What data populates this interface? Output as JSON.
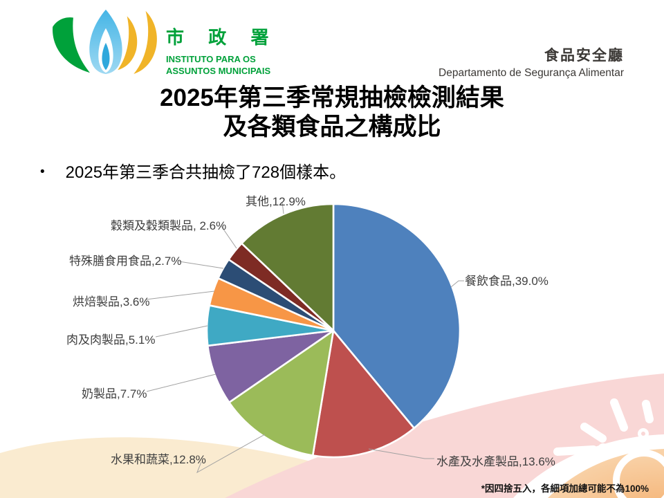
{
  "header": {
    "logo": {
      "cjk": "市 政 署",
      "line1": "INSTITUTO PARA OS",
      "line2": "ASSUNTOS MUNICIPAIS"
    },
    "department": {
      "cjk": "食品安全廳",
      "pt": "Departamento de Segurança Alimentar"
    }
  },
  "title": {
    "line1": "2025年第三季常規抽檢檢測結果",
    "line2": "及各類食品之構成比"
  },
  "bullet": {
    "marker": "•",
    "text": "2025年第三季合共抽檢了728個樣本。"
  },
  "footnote": "*因四捨五入，各細項加總可能不為100%",
  "chart_data": {
    "type": "pie",
    "title": "各類食品之構成比",
    "total_samples": 728,
    "unit": "%",
    "start_angle_deg": 0,
    "direction": "clockwise",
    "legend_position": "none",
    "label_style": "outside-with-leader-lines",
    "slices": [
      {
        "name": "餐飲食品",
        "value": 39.0,
        "label": "餐飲食品,39.0%",
        "color": "#4E81BD"
      },
      {
        "name": "水產及水產製品",
        "value": 13.6,
        "label": "水產及水產製品,13.6%",
        "color": "#BE504E"
      },
      {
        "name": "水果和蔬菜",
        "value": 12.8,
        "label": "水果和蔬菜,12.8%",
        "color": "#9BBB59"
      },
      {
        "name": "奶製品",
        "value": 7.7,
        "label": "奶製品,7.7%",
        "color": "#7E63A1"
      },
      {
        "name": "肉及肉製品",
        "value": 5.1,
        "label": "肉及肉製品,5.1%",
        "color": "#3FA9C4"
      },
      {
        "name": "烘焙製品",
        "value": 3.6,
        "label": "烘焙製品,3.6%",
        "color": "#F79646"
      },
      {
        "name": "特殊膳食用食品",
        "value": 2.7,
        "label": "特殊膳食用食品,2.7%",
        "color": "#2C4D75"
      },
      {
        "name": "穀類及穀類製品",
        "value": 2.6,
        "label": "穀類及穀類製品, 2.6%",
        "color": "#7E2B24"
      },
      {
        "name": "其他",
        "value": 12.9,
        "label": "其他,12.9%",
        "color": "#627B33"
      }
    ]
  },
  "colors": {
    "logo_green": "#00A13A",
    "logo_gold": "#F0B428",
    "logo_blue": "#45B5E6",
    "deco_pink": "#F9D7D6",
    "deco_cream": "#FAEBD0",
    "deco_orange": "#F5B97F",
    "deco_orange_light": "#F9D2A8",
    "sun_white": "#FFFFFF",
    "leader_line": "#A1A1A1"
  }
}
